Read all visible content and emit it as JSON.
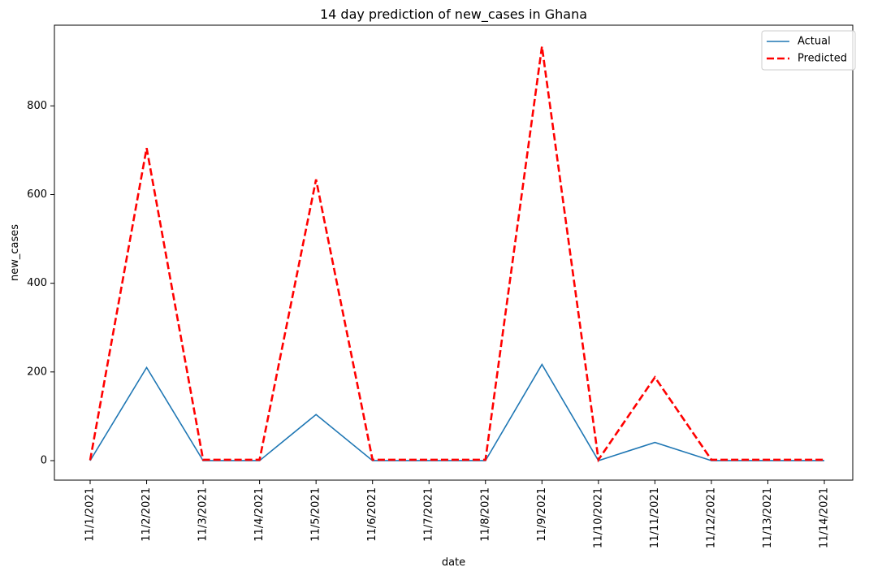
{
  "chart_data": {
    "type": "line",
    "title": "14 day prediction of new_cases in Ghana",
    "xlabel": "date",
    "ylabel": "new_cases",
    "categories": [
      "11/1/2021",
      "11/2/2021",
      "11/3/2021",
      "11/4/2021",
      "11/5/2021",
      "11/6/2021",
      "11/7/2021",
      "11/8/2021",
      "11/9/2021",
      "11/10/2021",
      "11/11/2021",
      "11/12/2021",
      "11/13/2021",
      "11/14/2021"
    ],
    "y_ticks": [
      0,
      200,
      400,
      600,
      800
    ],
    "ylim": [
      -44,
      982
    ],
    "legend_position": "top-right",
    "grid": false,
    "series": [
      {
        "name": "Actual",
        "color": "#1f77b4",
        "style": "solid",
        "values": [
          0,
          210,
          0,
          0,
          104,
          0,
          0,
          0,
          217,
          0,
          41,
          0,
          0,
          0
        ]
      },
      {
        "name": "Predicted",
        "color": "#ff0000",
        "style": "dashed",
        "values": [
          1,
          705,
          2,
          2,
          634,
          2,
          2,
          2,
          934,
          2,
          188,
          2,
          2,
          2
        ]
      }
    ]
  }
}
